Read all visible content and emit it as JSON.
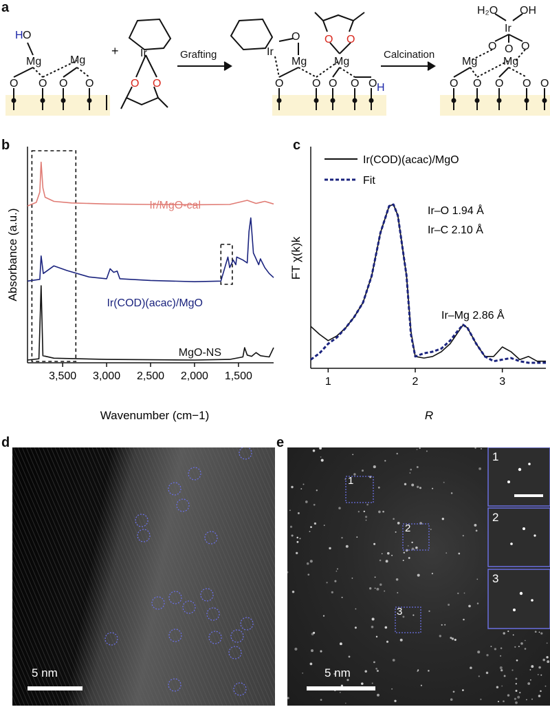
{
  "panels": {
    "a": "a",
    "b": "b",
    "c": "c",
    "d": "d",
    "e": "e"
  },
  "scheme": {
    "step1_label": "Grafting",
    "step2_label": "Calcination",
    "plus": "+",
    "atoms": {
      "H": "H",
      "O": "O",
      "Mg": "Mg",
      "Ir": "Ir",
      "H2O": "H₂O",
      "OH": "OH"
    },
    "colors": {
      "red_O": "#d9261c",
      "blue_H": "#1c27a8",
      "support": "#fbf3d3"
    }
  },
  "chart_data": [
    {
      "type": "line",
      "panel": "b",
      "xlabel": "Wavenumber (cm−1)",
      "ylabel": "Absorbance (a.u.)",
      "x_ticks": [
        "3,500",
        "3,000",
        "2,500",
        "2,000",
        "1,500"
      ],
      "x_tick_values": [
        3500,
        3000,
        2500,
        2000,
        1500
      ],
      "xlim": [
        3900,
        1100
      ],
      "x_reversed": true,
      "series": [
        {
          "name": "Ir/MgO-cal",
          "color": "#e07b74",
          "points": [
            [
              3900,
              0.5
            ],
            [
              3800,
              1.2
            ],
            [
              3760,
              3.2
            ],
            [
              3745,
              9.0
            ],
            [
              3725,
              4.0
            ],
            [
              3700,
              2.2
            ],
            [
              3600,
              1.4
            ],
            [
              3400,
              1.1
            ],
            [
              3000,
              0.9
            ],
            [
              2500,
              0.8
            ],
            [
              2000,
              0.75
            ],
            [
              1600,
              0.8
            ],
            [
              1500,
              1.2
            ],
            [
              1400,
              1.6
            ],
            [
              1300,
              1.0
            ],
            [
              1200,
              1.4
            ],
            [
              1100,
              0.9
            ]
          ]
        },
        {
          "name": "Ir(COD)(acac)/MgO",
          "color": "#1a237e",
          "points": [
            [
              3900,
              0.2
            ],
            [
              3760,
              0.5
            ],
            [
              3745,
              4.5
            ],
            [
              3720,
              1.5
            ],
            [
              3600,
              2.8
            ],
            [
              3450,
              2.0
            ],
            [
              3200,
              0.9
            ],
            [
              3000,
              0.6
            ],
            [
              2960,
              2.3
            ],
            [
              2920,
              1.7
            ],
            [
              2880,
              1.9
            ],
            [
              2850,
              0.6
            ],
            [
              2500,
              0.3
            ],
            [
              2000,
              0.1
            ],
            [
              1700,
              0.2
            ],
            [
              1620,
              4.3
            ],
            [
              1600,
              2.5
            ],
            [
              1560,
              3.8
            ],
            [
              1530,
              3.0
            ],
            [
              1520,
              4.3
            ],
            [
              1450,
              3.8
            ],
            [
              1400,
              3.3
            ],
            [
              1380,
              8.7
            ],
            [
              1360,
              11.0
            ],
            [
              1330,
              5.0
            ],
            [
              1270,
              3.0
            ],
            [
              1250,
              4.0
            ],
            [
              1200,
              2.5
            ],
            [
              1150,
              1.5
            ],
            [
              1100,
              0.8
            ]
          ]
        },
        {
          "name": "MgO-NS",
          "color": "#111111",
          "points": [
            [
              3900,
              0.0
            ],
            [
              3770,
              0.2
            ],
            [
              3745,
              12.0
            ],
            [
              3725,
              0.7
            ],
            [
              3600,
              0.3
            ],
            [
              3000,
              0.1
            ],
            [
              2000,
              0.0
            ],
            [
              1600,
              0.1
            ],
            [
              1450,
              0.5
            ],
            [
              1430,
              2.0
            ],
            [
              1400,
              0.8
            ],
            [
              1350,
              0.6
            ],
            [
              1300,
              1.2
            ],
            [
              1250,
              0.7
            ],
            [
              1150,
              0.5
            ],
            [
              1100,
              2.0
            ]
          ]
        }
      ],
      "boxes": [
        {
          "from": 3850,
          "to": 3350
        },
        {
          "from": 1700,
          "to": 1570
        }
      ]
    },
    {
      "type": "line",
      "panel": "c",
      "xlabel": "R",
      "ylabel": "FT χ(k)k",
      "x_ticks": [
        "1",
        "2",
        "3"
      ],
      "x_tick_values": [
        1,
        2,
        3
      ],
      "xlim": [
        0.8,
        3.5
      ],
      "legend": [
        "Ir(COD)(acac)/MgO",
        "Fit"
      ],
      "legend_placement": "top-left",
      "annotations": [
        "Ir–O 1.94 Å",
        "Ir–C 2.10 Å",
        "Ir–Mg 2.86 Å"
      ],
      "series": [
        {
          "name": "Ir(COD)(acac)/MgO",
          "color": "#111111",
          "style": "solid",
          "points": [
            [
              0.8,
              0.23
            ],
            [
              0.9,
              0.18
            ],
            [
              1.0,
              0.14
            ],
            [
              1.1,
              0.17
            ],
            [
              1.2,
              0.22
            ],
            [
              1.3,
              0.29
            ],
            [
              1.4,
              0.38
            ],
            [
              1.5,
              0.55
            ],
            [
              1.6,
              0.82
            ],
            [
              1.7,
              0.99
            ],
            [
              1.75,
              1.0
            ],
            [
              1.8,
              0.93
            ],
            [
              1.9,
              0.55
            ],
            [
              1.95,
              0.2
            ],
            [
              2.0,
              0.04
            ],
            [
              2.1,
              0.03
            ],
            [
              2.2,
              0.04
            ],
            [
              2.3,
              0.07
            ],
            [
              2.4,
              0.12
            ],
            [
              2.5,
              0.2
            ],
            [
              2.55,
              0.24
            ],
            [
              2.6,
              0.22
            ],
            [
              2.7,
              0.12
            ],
            [
              2.8,
              0.04
            ],
            [
              2.9,
              0.04
            ],
            [
              3.0,
              0.1
            ],
            [
              3.1,
              0.07
            ],
            [
              3.2,
              0.02
            ],
            [
              3.3,
              0.04
            ],
            [
              3.4,
              0.01
            ],
            [
              3.5,
              0.01
            ]
          ]
        },
        {
          "name": "Fit",
          "color": "#1a237e",
          "style": "dashed",
          "points": [
            [
              0.8,
              0.02
            ],
            [
              0.9,
              0.06
            ],
            [
              1.0,
              0.12
            ],
            [
              1.1,
              0.16
            ],
            [
              1.2,
              0.22
            ],
            [
              1.3,
              0.29
            ],
            [
              1.4,
              0.38
            ],
            [
              1.5,
              0.55
            ],
            [
              1.6,
              0.82
            ],
            [
              1.7,
              0.99
            ],
            [
              1.75,
              1.0
            ],
            [
              1.8,
              0.93
            ],
            [
              1.9,
              0.55
            ],
            [
              1.95,
              0.18
            ],
            [
              2.0,
              0.04
            ],
            [
              2.1,
              0.06
            ],
            [
              2.2,
              0.07
            ],
            [
              2.3,
              0.09
            ],
            [
              2.4,
              0.14
            ],
            [
              2.5,
              0.21
            ],
            [
              2.55,
              0.24
            ],
            [
              2.6,
              0.22
            ],
            [
              2.7,
              0.12
            ],
            [
              2.8,
              0.04
            ],
            [
              2.9,
              0.01
            ],
            [
              3.0,
              0.02
            ],
            [
              3.1,
              0.03
            ],
            [
              3.2,
              0.01
            ],
            [
              3.3,
              0.0
            ],
            [
              3.5,
              0.0
            ]
          ]
        }
      ]
    }
  ],
  "micrograph_d": {
    "scale_label": "5 nm",
    "circle_color": "#6a6fe0"
  },
  "micrograph_e": {
    "scale_label": "5 nm",
    "boxes": [
      "1",
      "2",
      "3"
    ],
    "insets": [
      "1",
      "2",
      "3"
    ],
    "box_color": "#6a6fe0"
  }
}
